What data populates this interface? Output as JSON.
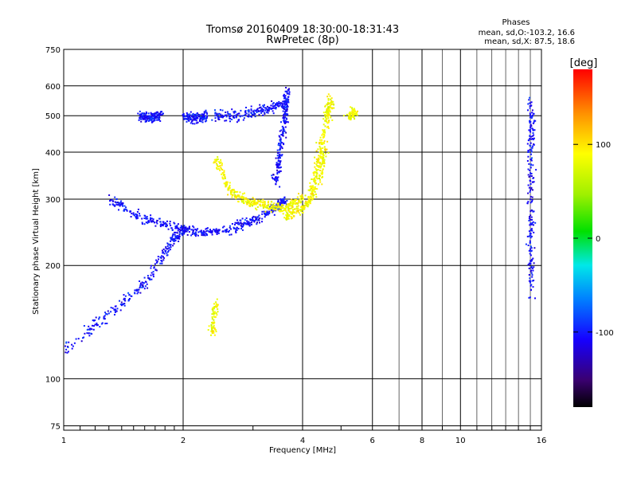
{
  "chart_data": {
    "type": "scatter",
    "title": "Tromsø 20160409 18:30:00-18:31:43",
    "subtitle": "RwPretec (8p)",
    "xlabel": "Frequency [MHz]",
    "ylabel": "Stationary phase Virtual Height [km]",
    "x_scale": "log",
    "y_scale": "log",
    "xlim": [
      1,
      16
    ],
    "ylim": [
      73,
      750
    ],
    "x_ticks": [
      1,
      2,
      4,
      6,
      8,
      10,
      16
    ],
    "x_tick_labels": [
      "1",
      "2",
      "4",
      "6",
      "8",
      "10",
      "16"
    ],
    "y_ticks": [
      75,
      100,
      200,
      300,
      400,
      500,
      600,
      750
    ],
    "y_tick_labels": [
      "75",
      "100",
      "200",
      "300",
      "400",
      "500",
      "600",
      "750"
    ],
    "grid": true,
    "stats": {
      "heading": "Phases",
      "line1": "mean, sd,O:-103.2, 16.6",
      "line2": "mean, sd,X:  87.5, 18.6"
    },
    "colorbar": {
      "label": "[deg]",
      "min": -180,
      "max": 180,
      "ticks": [
        100,
        0,
        -100
      ],
      "tick_labels": [
        "100",
        "0",
        "-100"
      ]
    },
    "series": [
      {
        "mode": "O",
        "mean_phase_deg": -103.2,
        "sd_phase_deg": 16.6,
        "traces": [
          {
            "x": [
              1.0,
              1.3,
              1.6,
              1.85,
              2.0
            ],
            "y": [
              120,
              150,
              180,
              230,
              250
            ]
          },
          {
            "x": [
              1.3,
              1.55,
              1.9,
              2.2,
              2.6,
              3.0,
              3.4,
              3.6
            ],
            "y": [
              300,
              270,
              255,
              245,
              250,
              265,
              285,
              300
            ]
          },
          {
            "x": [
              3.4,
              3.5,
              3.6,
              3.65
            ],
            "y": [
              330,
              400,
              500,
              600
            ]
          },
          {
            "x": [
              2.0,
              2.15,
              2.3
            ],
            "y": [
              500,
              495,
              500
            ]
          },
          {
            "x": [
              2.4,
              2.8,
              3.2,
              3.6
            ],
            "y": [
              500,
              505,
              520,
              545
            ]
          },
          {
            "x": [
              1.55,
              1.65,
              1.75
            ],
            "y": [
              500,
              495,
              505
            ]
          },
          {
            "x": [
              15.0,
              15.0,
              15.0,
              15.0
            ],
            "y": [
              160,
              250,
              400,
              550
            ]
          }
        ]
      },
      {
        "mode": "X",
        "mean_phase_deg": 87.5,
        "sd_phase_deg": 18.6,
        "traces": [
          {
            "x": [
              2.4,
              2.6,
              2.9,
              3.2,
              3.6,
              4.0
            ],
            "y": [
              390,
              320,
              295,
              290,
              285,
              305
            ]
          },
          {
            "x": [
              3.6,
              4.0,
              4.3,
              4.6
            ],
            "y": [
              270,
              285,
              320,
              420
            ]
          },
          {
            "x": [
              4.2,
              4.4,
              4.6,
              4.7
            ],
            "y": [
              320,
              400,
              500,
              560
            ]
          },
          {
            "x": [
              2.35,
              2.4
            ],
            "y": [
              130,
              160
            ]
          },
          {
            "x": [
              5.2,
              5.4
            ],
            "y": [
              500,
              510
            ]
          }
        ]
      }
    ]
  }
}
